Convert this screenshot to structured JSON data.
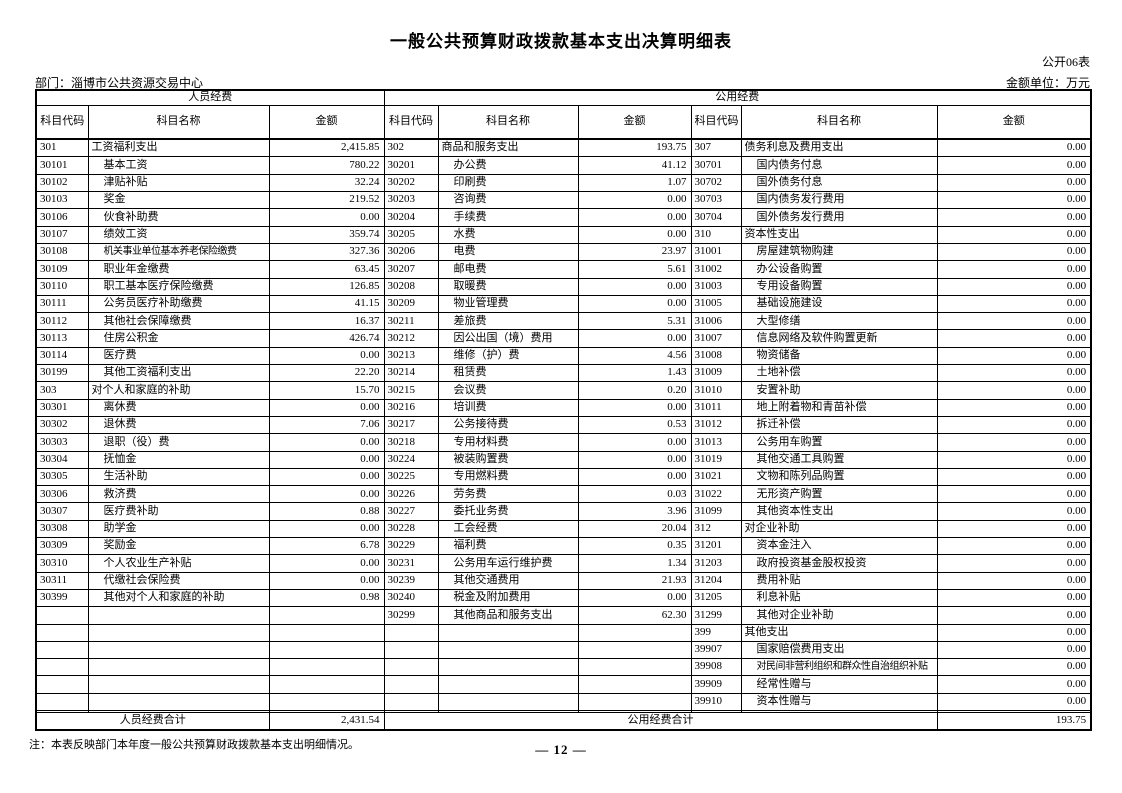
{
  "page": {
    "title": "一般公共预算财政拨款基本支出决算明细表",
    "form_code": "公开06表",
    "department": "部门：淄博市公共资源交易中心",
    "unit": "金额单位：万元",
    "note": "注：本表反映部门本年度一般公共预算财政拨款基本支出明细情况。",
    "page_number": "— 12 —"
  },
  "table": {
    "section_headers": {
      "personnel": "人员经费",
      "public": "公用经费"
    },
    "column_headers": {
      "code": "科目代码",
      "name": "科目名称",
      "amount": "金额"
    },
    "totals": {
      "personnel_label": "人员经费合计",
      "personnel_amount": "2,431.54",
      "public_label": "公用经费合计",
      "public_amount": "193.75"
    },
    "rows": [
      {
        "l": [
          "301",
          "工资福利支出",
          "2,415.85",
          0
        ],
        "m": [
          "302",
          "商品和服务支出",
          "193.75",
          0
        ],
        "r": [
          "307",
          "债务利息及费用支出",
          "0.00",
          0
        ]
      },
      {
        "l": [
          "30101",
          "基本工资",
          "780.22",
          1
        ],
        "m": [
          "30201",
          "办公费",
          "41.12",
          1
        ],
        "r": [
          "30701",
          "国内债务付息",
          "0.00",
          1
        ]
      },
      {
        "l": [
          "30102",
          "津贴补贴",
          "32.24",
          1
        ],
        "m": [
          "30202",
          "印刷费",
          "1.07",
          1
        ],
        "r": [
          "30702",
          "国外债务付息",
          "0.00",
          1
        ]
      },
      {
        "l": [
          "30103",
          "奖金",
          "219.52",
          1
        ],
        "m": [
          "30203",
          "咨询费",
          "0.00",
          1
        ],
        "r": [
          "30703",
          "国内债务发行费用",
          "0.00",
          1
        ]
      },
      {
        "l": [
          "30106",
          "伙食补助费",
          "0.00",
          1
        ],
        "m": [
          "30204",
          "手续费",
          "0.00",
          1
        ],
        "r": [
          "30704",
          "国外债务发行费用",
          "0.00",
          1
        ]
      },
      {
        "l": [
          "30107",
          "绩效工资",
          "359.74",
          1
        ],
        "m": [
          "30205",
          "水费",
          "0.00",
          1
        ],
        "r": [
          "310",
          "资本性支出",
          "0.00",
          0
        ]
      },
      {
        "l": [
          "30108",
          "机关事业单位基本养老保险缴费",
          "327.36",
          1
        ],
        "m": [
          "30206",
          "电费",
          "23.97",
          1
        ],
        "r": [
          "31001",
          "房屋建筑物购建",
          "0.00",
          1
        ]
      },
      {
        "l": [
          "30109",
          "职业年金缴费",
          "63.45",
          1
        ],
        "m": [
          "30207",
          "邮电费",
          "5.61",
          1
        ],
        "r": [
          "31002",
          "办公设备购置",
          "0.00",
          1
        ]
      },
      {
        "l": [
          "30110",
          "职工基本医疗保险缴费",
          "126.85",
          1
        ],
        "m": [
          "30208",
          "取暖费",
          "0.00",
          1
        ],
        "r": [
          "31003",
          "专用设备购置",
          "0.00",
          1
        ]
      },
      {
        "l": [
          "30111",
          "公务员医疗补助缴费",
          "41.15",
          1
        ],
        "m": [
          "30209",
          "物业管理费",
          "0.00",
          1
        ],
        "r": [
          "31005",
          "基础设施建设",
          "0.00",
          1
        ]
      },
      {
        "l": [
          "30112",
          "其他社会保障缴费",
          "16.37",
          1
        ],
        "m": [
          "30211",
          "差旅费",
          "5.31",
          1
        ],
        "r": [
          "31006",
          "大型修缮",
          "0.00",
          1
        ]
      },
      {
        "l": [
          "30113",
          "住房公积金",
          "426.74",
          1
        ],
        "m": [
          "30212",
          "因公出国（境）费用",
          "0.00",
          1
        ],
        "r": [
          "31007",
          "信息网络及软件购置更新",
          "0.00",
          1
        ]
      },
      {
        "l": [
          "30114",
          "医疗费",
          "0.00",
          1
        ],
        "m": [
          "30213",
          "维修（护）费",
          "4.56",
          1
        ],
        "r": [
          "31008",
          "物资储备",
          "0.00",
          1
        ]
      },
      {
        "l": [
          "30199",
          "其他工资福利支出",
          "22.20",
          1
        ],
        "m": [
          "30214",
          "租赁费",
          "1.43",
          1
        ],
        "r": [
          "31009",
          "土地补偿",
          "0.00",
          1
        ]
      },
      {
        "l": [
          "303",
          "对个人和家庭的补助",
          "15.70",
          0
        ],
        "m": [
          "30215",
          "会议费",
          "0.20",
          1
        ],
        "r": [
          "31010",
          "安置补助",
          "0.00",
          1
        ]
      },
      {
        "l": [
          "30301",
          "离休费",
          "0.00",
          1
        ],
        "m": [
          "30216",
          "培训费",
          "0.00",
          1
        ],
        "r": [
          "31011",
          "地上附着物和青苗补偿",
          "0.00",
          1
        ]
      },
      {
        "l": [
          "30302",
          "退休费",
          "7.06",
          1
        ],
        "m": [
          "30217",
          "公务接待费",
          "0.53",
          1
        ],
        "r": [
          "31012",
          "拆迁补偿",
          "0.00",
          1
        ]
      },
      {
        "l": [
          "30303",
          "退职（役）费",
          "0.00",
          1
        ],
        "m": [
          "30218",
          "专用材料费",
          "0.00",
          1
        ],
        "r": [
          "31013",
          "公务用车购置",
          "0.00",
          1
        ]
      },
      {
        "l": [
          "30304",
          "抚恤金",
          "0.00",
          1
        ],
        "m": [
          "30224",
          "被装购置费",
          "0.00",
          1
        ],
        "r": [
          "31019",
          "其他交通工具购置",
          "0.00",
          1
        ]
      },
      {
        "l": [
          "30305",
          "生活补助",
          "0.00",
          1
        ],
        "m": [
          "30225",
          "专用燃料费",
          "0.00",
          1
        ],
        "r": [
          "31021",
          "文物和陈列品购置",
          "0.00",
          1
        ]
      },
      {
        "l": [
          "30306",
          "救济费",
          "0.00",
          1
        ],
        "m": [
          "30226",
          "劳务费",
          "0.03",
          1
        ],
        "r": [
          "31022",
          "无形资产购置",
          "0.00",
          1
        ]
      },
      {
        "l": [
          "30307",
          "医疗费补助",
          "0.88",
          1
        ],
        "m": [
          "30227",
          "委托业务费",
          "3.96",
          1
        ],
        "r": [
          "31099",
          "其他资本性支出",
          "0.00",
          1
        ]
      },
      {
        "l": [
          "30308",
          "助学金",
          "0.00",
          1
        ],
        "m": [
          "30228",
          "工会经费",
          "20.04",
          1
        ],
        "r": [
          "312",
          "对企业补助",
          "0.00",
          0
        ]
      },
      {
        "l": [
          "30309",
          "奖励金",
          "6.78",
          1
        ],
        "m": [
          "30229",
          "福利费",
          "0.35",
          1
        ],
        "r": [
          "31201",
          "资本金注入",
          "0.00",
          1
        ]
      },
      {
        "l": [
          "30310",
          "个人农业生产补贴",
          "0.00",
          1
        ],
        "m": [
          "30231",
          "公务用车运行维护费",
          "1.34",
          1
        ],
        "r": [
          "31203",
          "政府投资基金股权投资",
          "0.00",
          1
        ]
      },
      {
        "l": [
          "30311",
          "代缴社会保险费",
          "0.00",
          1
        ],
        "m": [
          "30239",
          "其他交通费用",
          "21.93",
          1
        ],
        "r": [
          "31204",
          "费用补贴",
          "0.00",
          1
        ]
      },
      {
        "l": [
          "30399",
          "其他对个人和家庭的补助",
          "0.98",
          1
        ],
        "m": [
          "30240",
          "税金及附加费用",
          "0.00",
          1
        ],
        "r": [
          "31205",
          "利息补贴",
          "0.00",
          1
        ]
      },
      {
        "l": null,
        "m": [
          "30299",
          "其他商品和服务支出",
          "62.30",
          1
        ],
        "r": [
          "31299",
          "其他对企业补助",
          "0.00",
          1
        ]
      },
      {
        "l": null,
        "m": null,
        "r": [
          "399",
          "其他支出",
          "0.00",
          0
        ]
      },
      {
        "l": null,
        "m": null,
        "r": [
          "39907",
          "国家赔偿费用支出",
          "0.00",
          1
        ]
      },
      {
        "l": null,
        "m": null,
        "r": [
          "39908",
          "对民间非营利组织和群众性自治组织补贴",
          "0.00",
          1
        ]
      },
      {
        "l": null,
        "m": null,
        "r": [
          "39909",
          "经常性赠与",
          "0.00",
          1
        ]
      },
      {
        "l": null,
        "m": null,
        "r": [
          "39910",
          "资本性赠与",
          "0.00",
          1
        ]
      },
      {
        "l": null,
        "m": null,
        "r": null
      }
    ]
  }
}
